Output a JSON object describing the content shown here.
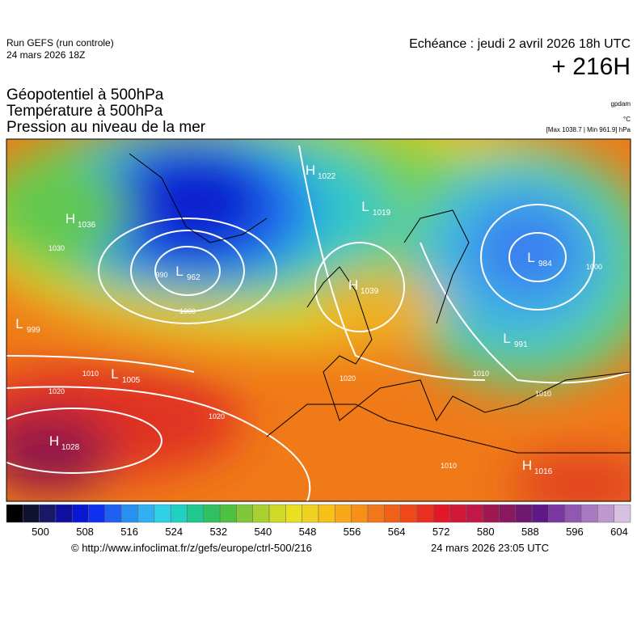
{
  "header": {
    "run": "Run GEFS (run controle)",
    "run_date": "24 mars 2026 18Z",
    "echeance": "Echéance : jeudi 2 avril 2026 18h UTC",
    "lead": "+ 216H"
  },
  "titles": [
    "Géopotentiel à 500hPa",
    "Température à 500hPa",
    "Pression au niveau de la mer"
  ],
  "units": {
    "geopotential": "gpdam",
    "temperature": "°C",
    "pressure": "[Max 1038.7 | Min 961.9] hPa"
  },
  "centers": [
    {
      "type": "H",
      "value": "1036"
    },
    {
      "type": "L",
      "value": "962"
    },
    {
      "type": "H",
      "value": "1039"
    },
    {
      "type": "L",
      "value": "999"
    },
    {
      "type": "L",
      "value": "1005"
    },
    {
      "type": "H",
      "value": "1028"
    },
    {
      "type": "H",
      "value": "1022"
    },
    {
      "type": "L",
      "value": "1019"
    },
    {
      "type": "L",
      "value": "984"
    },
    {
      "type": "L",
      "value": "991"
    },
    {
      "type": "H",
      "value": "1016"
    }
  ],
  "isobar_labels": [
    "1000",
    "1010",
    "1020",
    "1020",
    "1020",
    "1010",
    "1010",
    "1000",
    "1010",
    "990",
    "1030"
  ],
  "colorbar": {
    "labels": [
      "500",
      "508",
      "516",
      "524",
      "532",
      "540",
      "548",
      "556",
      "564",
      "572",
      "580",
      "588",
      "596",
      "604"
    ]
  },
  "footer": {
    "url": "© http://www.infoclimat.fr/z/gefs/europe/ctrl-500/216",
    "timestamp": "24 mars 2026 23:05 UTC"
  }
}
